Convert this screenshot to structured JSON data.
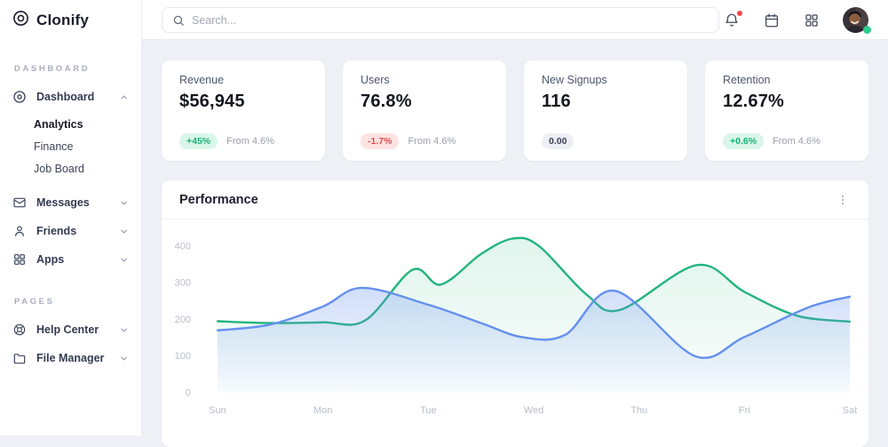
{
  "app": {
    "name": "Clonify"
  },
  "topbar": {
    "search_placeholder": "Search...",
    "has_notification": true,
    "user_status": "online"
  },
  "sidebar": {
    "sections": [
      {
        "label": "DASHBOARD",
        "items": [
          {
            "label": "Dashboard",
            "icon": "disc-icon",
            "state": "expanded"
          },
          {
            "label": "Messages",
            "icon": "mail-icon",
            "state": "collapsed"
          },
          {
            "label": "Friends",
            "icon": "user-icon",
            "state": "collapsed"
          },
          {
            "label": "Apps",
            "icon": "apps-grid-icon",
            "state": "collapsed"
          }
        ],
        "dashboard_children": [
          {
            "label": "Analytics",
            "active": true
          },
          {
            "label": "Finance",
            "active": false
          },
          {
            "label": "Job Board",
            "active": false
          }
        ]
      },
      {
        "label": "PAGES",
        "items": [
          {
            "label": "Help Center",
            "icon": "lifebuoy-icon",
            "state": "collapsed"
          },
          {
            "label": "File Manager",
            "icon": "folder-icon",
            "state": "collapsed"
          }
        ]
      }
    ]
  },
  "cards": [
    {
      "title": "Revenue",
      "value": "$56,945",
      "badge": {
        "text": "+45%",
        "type": "up"
      },
      "note": "From 4.6%"
    },
    {
      "title": "Users",
      "value": "76.8%",
      "badge": {
        "text": "-1.7%",
        "type": "down"
      },
      "note": "From 4.6%"
    },
    {
      "title": "New Signups",
      "value": "116",
      "badge": {
        "text": "0.00",
        "type": "neutral"
      },
      "note": ""
    },
    {
      "title": "Retention",
      "value": "12.67%",
      "badge": {
        "text": "+0.6%",
        "type": "up"
      },
      "note": "From 4.6%"
    }
  ],
  "panel": {
    "title": "Performance"
  },
  "colors": {
    "green": "#24b47e",
    "blue": "#6590ee",
    "badge_up": "#12b476",
    "badge_down": "#e14d52",
    "background": "#eef0f5"
  },
  "chart_data": {
    "type": "area",
    "title": "Performance",
    "categories": [
      "Sun",
      "Mon",
      "Tue",
      "Wed",
      "Thu",
      "Fri",
      "Sat"
    ],
    "xlabel": "",
    "ylabel": "",
    "y_ticks": [
      0,
      100,
      200,
      300,
      400
    ],
    "ylim": [
      0,
      450
    ],
    "grid": false,
    "legend": "none",
    "series": [
      {
        "name": "green-series",
        "color": "#24b47e",
        "fill_opacity_top": 0.14,
        "fill_opacity_bottom": 0.02,
        "points": [
          [
            0,
            195
          ],
          [
            0.5,
            190
          ],
          [
            1,
            192
          ],
          [
            1.4,
            197
          ],
          [
            1.85,
            335
          ],
          [
            2.12,
            295
          ],
          [
            2.5,
            378
          ],
          [
            2.8,
            420
          ],
          [
            3.05,
            400
          ],
          [
            3.5,
            268
          ],
          [
            3.82,
            226
          ],
          [
            4.55,
            348
          ],
          [
            5,
            275
          ],
          [
            5.5,
            210
          ],
          [
            6,
            194
          ]
        ]
      },
      {
        "name": "blue-series",
        "color": "#6590ee",
        "fill_opacity_top": 0.3,
        "fill_opacity_bottom": 0.02,
        "points": [
          [
            0,
            170
          ],
          [
            0.5,
            186
          ],
          [
            1,
            235
          ],
          [
            1.37,
            286
          ],
          [
            2,
            240
          ],
          [
            2.5,
            190
          ],
          [
            2.9,
            151
          ],
          [
            3.3,
            158
          ],
          [
            3.77,
            278
          ],
          [
            4.53,
            100
          ],
          [
            5,
            152
          ],
          [
            5.6,
            232
          ],
          [
            6,
            262
          ]
        ]
      }
    ]
  }
}
